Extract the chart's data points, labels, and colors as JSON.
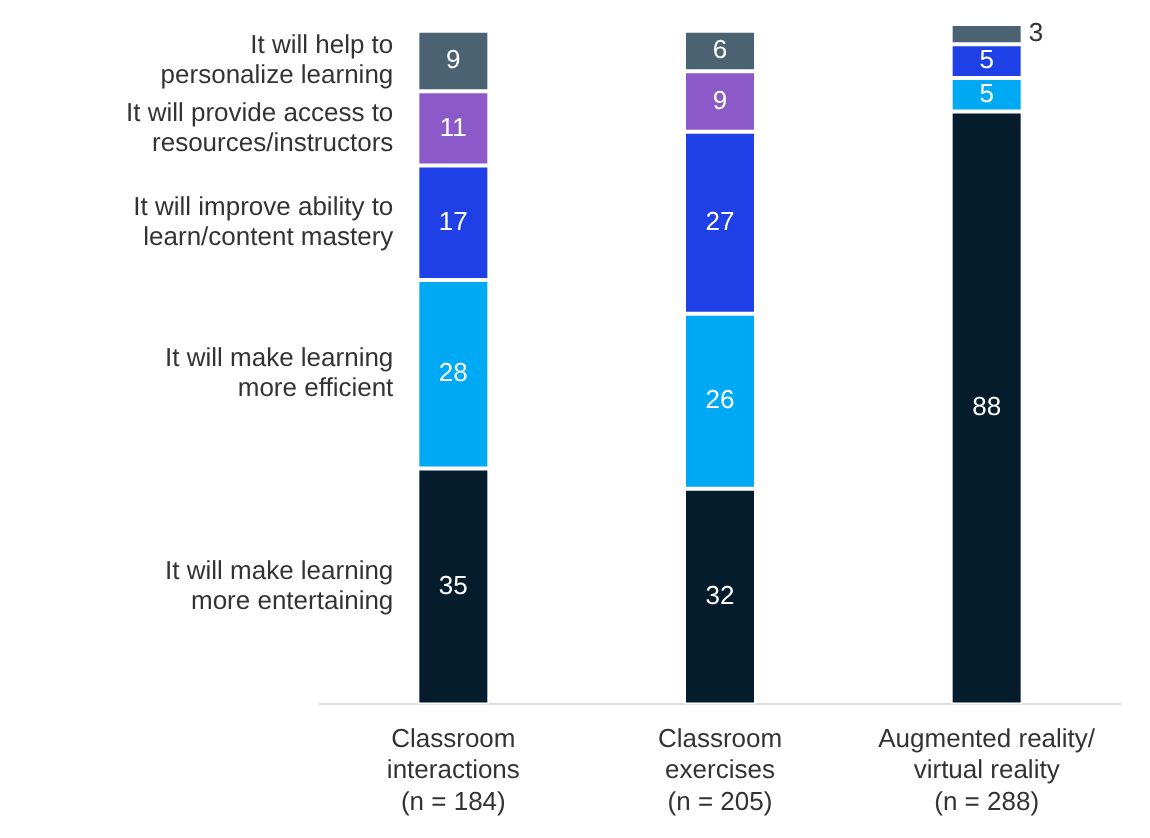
{
  "chart_data": {
    "type": "bar",
    "stacked": true,
    "data_labels": true,
    "legend": false,
    "grid": false,
    "categories": [
      "Classroom\ninteractions\n(n = 184)",
      "Classroom\nexercises\n(n = 205)",
      "Augmented reality/\nvirtual reality\n(n = 288)"
    ],
    "series": [
      {
        "name": "It will make learning\nmore entertaining",
        "color": "#051c2c",
        "values": [
          35,
          32,
          88
        ]
      },
      {
        "name": "It will make learning\nmore efficient",
        "color": "#00a9f4",
        "values": [
          28,
          26,
          5
        ]
      },
      {
        "name": "It will improve ability to\nlearn/content mastery",
        "color": "#1f40e6",
        "values": [
          17,
          27,
          5
        ]
      },
      {
        "name": "It will provide access to\nresources/instructors",
        "color": "#8c5ac8",
        "values": [
          11,
          9,
          null
        ]
      },
      {
        "name": "It will help to\npersonalize learning",
        "color": "#4b6273",
        "values": [
          9,
          6,
          3
        ]
      }
    ]
  }
}
